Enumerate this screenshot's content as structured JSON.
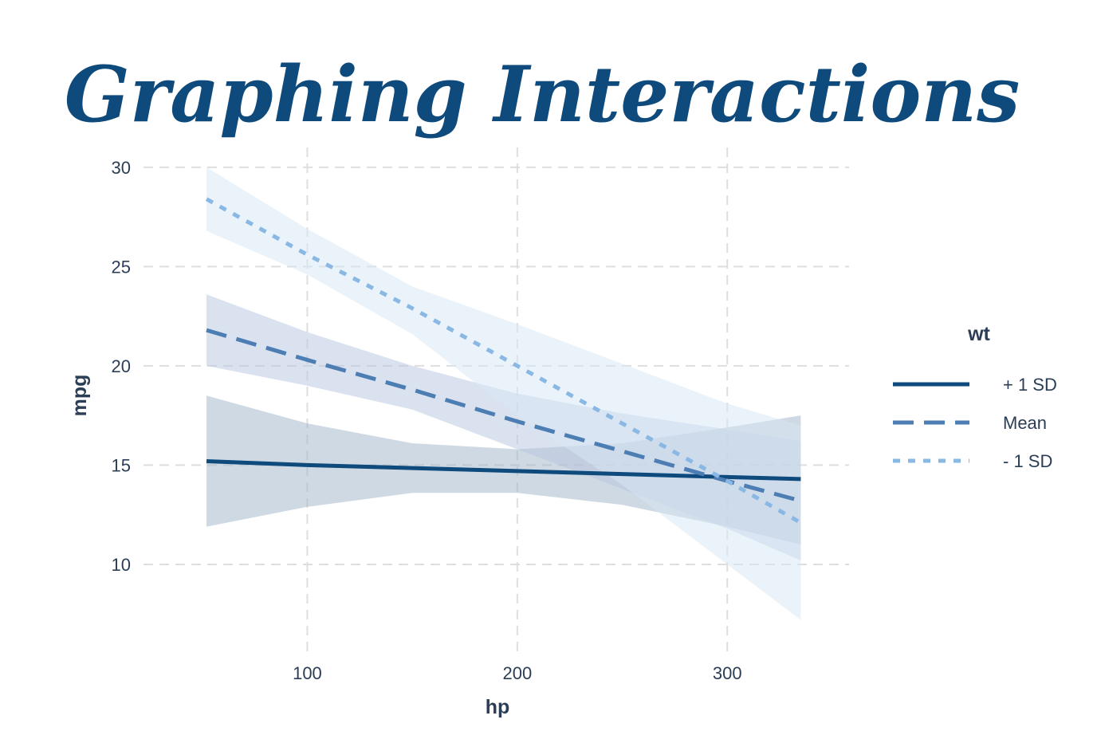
{
  "chart_data": {
    "type": "line",
    "title": "Graphing Interactions",
    "xlabel": "hp",
    "ylabel": "mpg",
    "xlim": [
      22,
      358
    ],
    "ylim": [
      5.5,
      31
    ],
    "x_ticks": [
      100,
      200,
      300
    ],
    "y_ticks": [
      10,
      15,
      20,
      25,
      30
    ],
    "grid": true,
    "legend": {
      "title": "wt",
      "position": "right"
    },
    "series": [
      {
        "name": "+ 1 SD",
        "line_style": "solid",
        "color": "#0e4a7c",
        "band_color": "#9fb3c8",
        "x": [
          52,
          100,
          150,
          200,
          250,
          300,
          335
        ],
        "y": [
          15.2,
          15.0,
          14.85,
          14.7,
          14.55,
          14.4,
          14.3
        ],
        "lower": [
          11.9,
          12.9,
          13.6,
          13.6,
          13.0,
          11.9,
          11.0
        ],
        "upper": [
          18.5,
          17.1,
          16.1,
          15.8,
          16.1,
          16.9,
          17.5
        ]
      },
      {
        "name": "Mean",
        "line_style": "dashed",
        "color": "#4c7eb4",
        "band_color": "#b8c6e0",
        "x": [
          52,
          100,
          150,
          200,
          250,
          300,
          335
        ],
        "y": [
          21.8,
          20.3,
          18.8,
          17.2,
          15.7,
          14.2,
          13.2
        ],
        "lower": [
          20.0,
          19.0,
          17.8,
          15.8,
          13.8,
          11.8,
          10.2
        ],
        "upper": [
          23.6,
          21.7,
          20.0,
          18.6,
          17.6,
          16.8,
          16.2
        ]
      },
      {
        "name": "- 1 SD",
        "line_style": "dotted",
        "color": "#8ab8e4",
        "band_color": "#d7e7f6",
        "x": [
          52,
          100,
          150,
          200,
          250,
          300,
          335
        ],
        "y": [
          28.4,
          25.6,
          22.9,
          20.0,
          17.1,
          14.2,
          12.1
        ],
        "lower": [
          26.8,
          24.6,
          21.6,
          17.5,
          14.0,
          10.0,
          7.2
        ],
        "upper": [
          30.0,
          26.9,
          24.0,
          22.1,
          20.1,
          18.1,
          17.0
        ]
      }
    ],
    "colors": {
      "title": "#0e4a7c",
      "axis_text": "#2b3e55",
      "grid": "#dedede"
    }
  }
}
